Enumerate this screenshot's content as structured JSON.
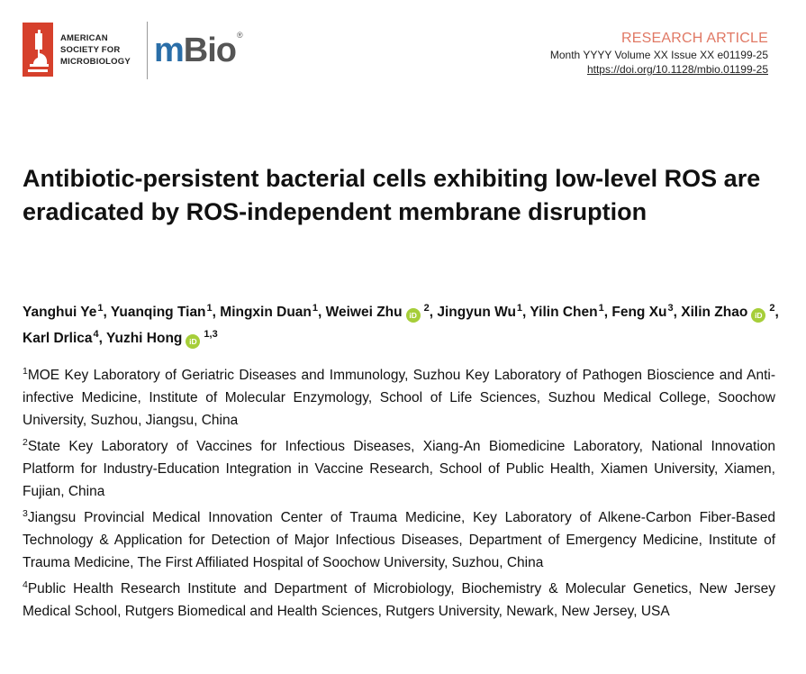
{
  "header": {
    "publisher_lines": [
      "AMERICAN",
      "SOCIETY FOR",
      "MICROBIOLOGY"
    ],
    "journal_logo": {
      "part1": "m",
      "part2": "Bio",
      "mark": "®"
    }
  },
  "article_meta": {
    "type": "RESEARCH ARTICLE",
    "issue": "Month YYYY Volume XX Issue XX  e01199-25",
    "doi": "https://doi.org/10.1128/mbio.01199-25"
  },
  "title": "Antibiotic-persistent bacterial cells exhibiting low-level ROS are eradicated by ROS-independent membrane disruption",
  "authors": [
    {
      "name": "Yanghui Ye",
      "aff": "1",
      "orcid": false
    },
    {
      "name": "Yuanqing Tian",
      "aff": "1",
      "orcid": false
    },
    {
      "name": "Mingxin Duan",
      "aff": "1",
      "orcid": false
    },
    {
      "name": "Weiwei Zhu",
      "aff": "2",
      "orcid": true
    },
    {
      "name": "Jingyun Wu",
      "aff": "1",
      "orcid": false
    },
    {
      "name": "Yilin Chen",
      "aff": "1",
      "orcid": false
    },
    {
      "name": "Feng Xu",
      "aff": "3",
      "orcid": false
    },
    {
      "name": "Xilin Zhao",
      "aff": "2",
      "orcid": true
    },
    {
      "name": "Karl Drlica",
      "aff": "4",
      "orcid": false
    },
    {
      "name": "Yuzhi Hong",
      "aff": "1,3",
      "orcid": true
    }
  ],
  "orcid_label": "iD",
  "affiliations": [
    {
      "num": "1",
      "text": "MOE Key Laboratory of Geriatric Diseases and Immunology, Suzhou Key Laboratory of Pathogen Bioscience and Anti-infective Medicine, Institute of Molecular Enzymology, School of Life Sciences, Suzhou Medical College, Soochow University, Suzhou, Jiangsu, China"
    },
    {
      "num": "2",
      "text": "State Key Laboratory of Vaccines for Infectious Diseases, Xiang-An Biomedicine Laboratory, National Innovation Platform for Industry-Education Integration in Vaccine Research, School of Public Health, Xiamen University, Xiamen, Fujian, China"
    },
    {
      "num": "3",
      "text": "Jiangsu Provincial Medical Innovation Center of Trauma Medicine, Key Laboratory of Alkene-Carbon Fiber-Based Technology & Application for Detection of Major Infectious Diseases, Department of Emergency Medicine, Institute of Trauma Medicine, The First Affiliated Hospital of Soochow University, Suzhou, China"
    },
    {
      "num": "4",
      "text": "Public Health Research Institute and Department of Microbiology, Biochemistry & Molecular Genetics, New Jersey Medical School, Rutgers Biomedical and Health Sciences, Rutgers University, Newark, New Jersey, USA"
    }
  ],
  "colors": {
    "accent": "#e07864",
    "orcid": "#a6ce39",
    "asm_red": "#d6402c",
    "mbio_blue": "#2a6ea8"
  }
}
